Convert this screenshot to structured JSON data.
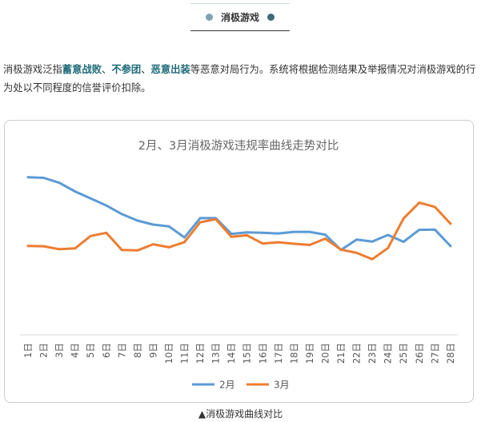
{
  "header": {
    "title": "消极游戏"
  },
  "intro": {
    "segments": [
      {
        "text": "消极游戏泛指",
        "highlight": false
      },
      {
        "text": "蓄意战败",
        "highlight": true
      },
      {
        "text": "、",
        "highlight": false
      },
      {
        "text": "不参团",
        "highlight": true
      },
      {
        "text": "、",
        "highlight": false
      },
      {
        "text": "恶意出装",
        "highlight": true
      },
      {
        "text": "等恶意对局行为。系统将根据检测结果及举报情况对消极游戏的行为处以不同程度的信誉评价扣除。",
        "highlight": false
      }
    ]
  },
  "colors": {
    "highlight": "#1f6b78",
    "series_feb": "#5b9bd5",
    "series_mar": "#ed7d31",
    "dot_left": "#7fa3b0",
    "dot_right": "#3f6c78"
  },
  "chart_data": {
    "type": "line",
    "title": "2月、3月消极游戏违规率曲线走势对比",
    "categories": [
      "1日",
      "2日",
      "3日",
      "4日",
      "5日",
      "6日",
      "7日",
      "8日",
      "9日",
      "10日",
      "11日",
      "12日",
      "13日",
      "14日",
      "15日",
      "16日",
      "17日",
      "18日",
      "19日",
      "20日",
      "21日",
      "22日",
      "23日",
      "24日",
      "25日",
      "26日",
      "27日",
      "28日"
    ],
    "series": [
      {
        "name": "2月",
        "color": "#5b9bd5",
        "values": [
          95.2,
          94.8,
          91.8,
          86.6,
          82.4,
          78.1,
          72.9,
          69.0,
          66.6,
          65.5,
          58.8,
          70.5,
          70.5,
          61.0,
          61.9,
          61.6,
          61.2,
          62.2,
          62.2,
          60.5,
          51.3,
          57.5,
          56.3,
          60.3,
          56.2,
          63.4,
          63.6,
          53.6
        ]
      },
      {
        "name": "3月",
        "color": "#ed7d31",
        "values": [
          53.7,
          53.5,
          51.7,
          52.2,
          59.7,
          61.6,
          51.3,
          51.0,
          54.7,
          52.9,
          56.0,
          68.0,
          69.8,
          59.2,
          60.1,
          55.1,
          55.9,
          55.0,
          54.3,
          58.1,
          51.5,
          49.5,
          45.7,
          52.4,
          70.3,
          79.8,
          77.3,
          67.1
        ]
      }
    ],
    "ylim": [
      0,
      110
    ],
    "grid": false,
    "legend_position": "bottom"
  },
  "caption": "▲消极游戏曲线对比"
}
